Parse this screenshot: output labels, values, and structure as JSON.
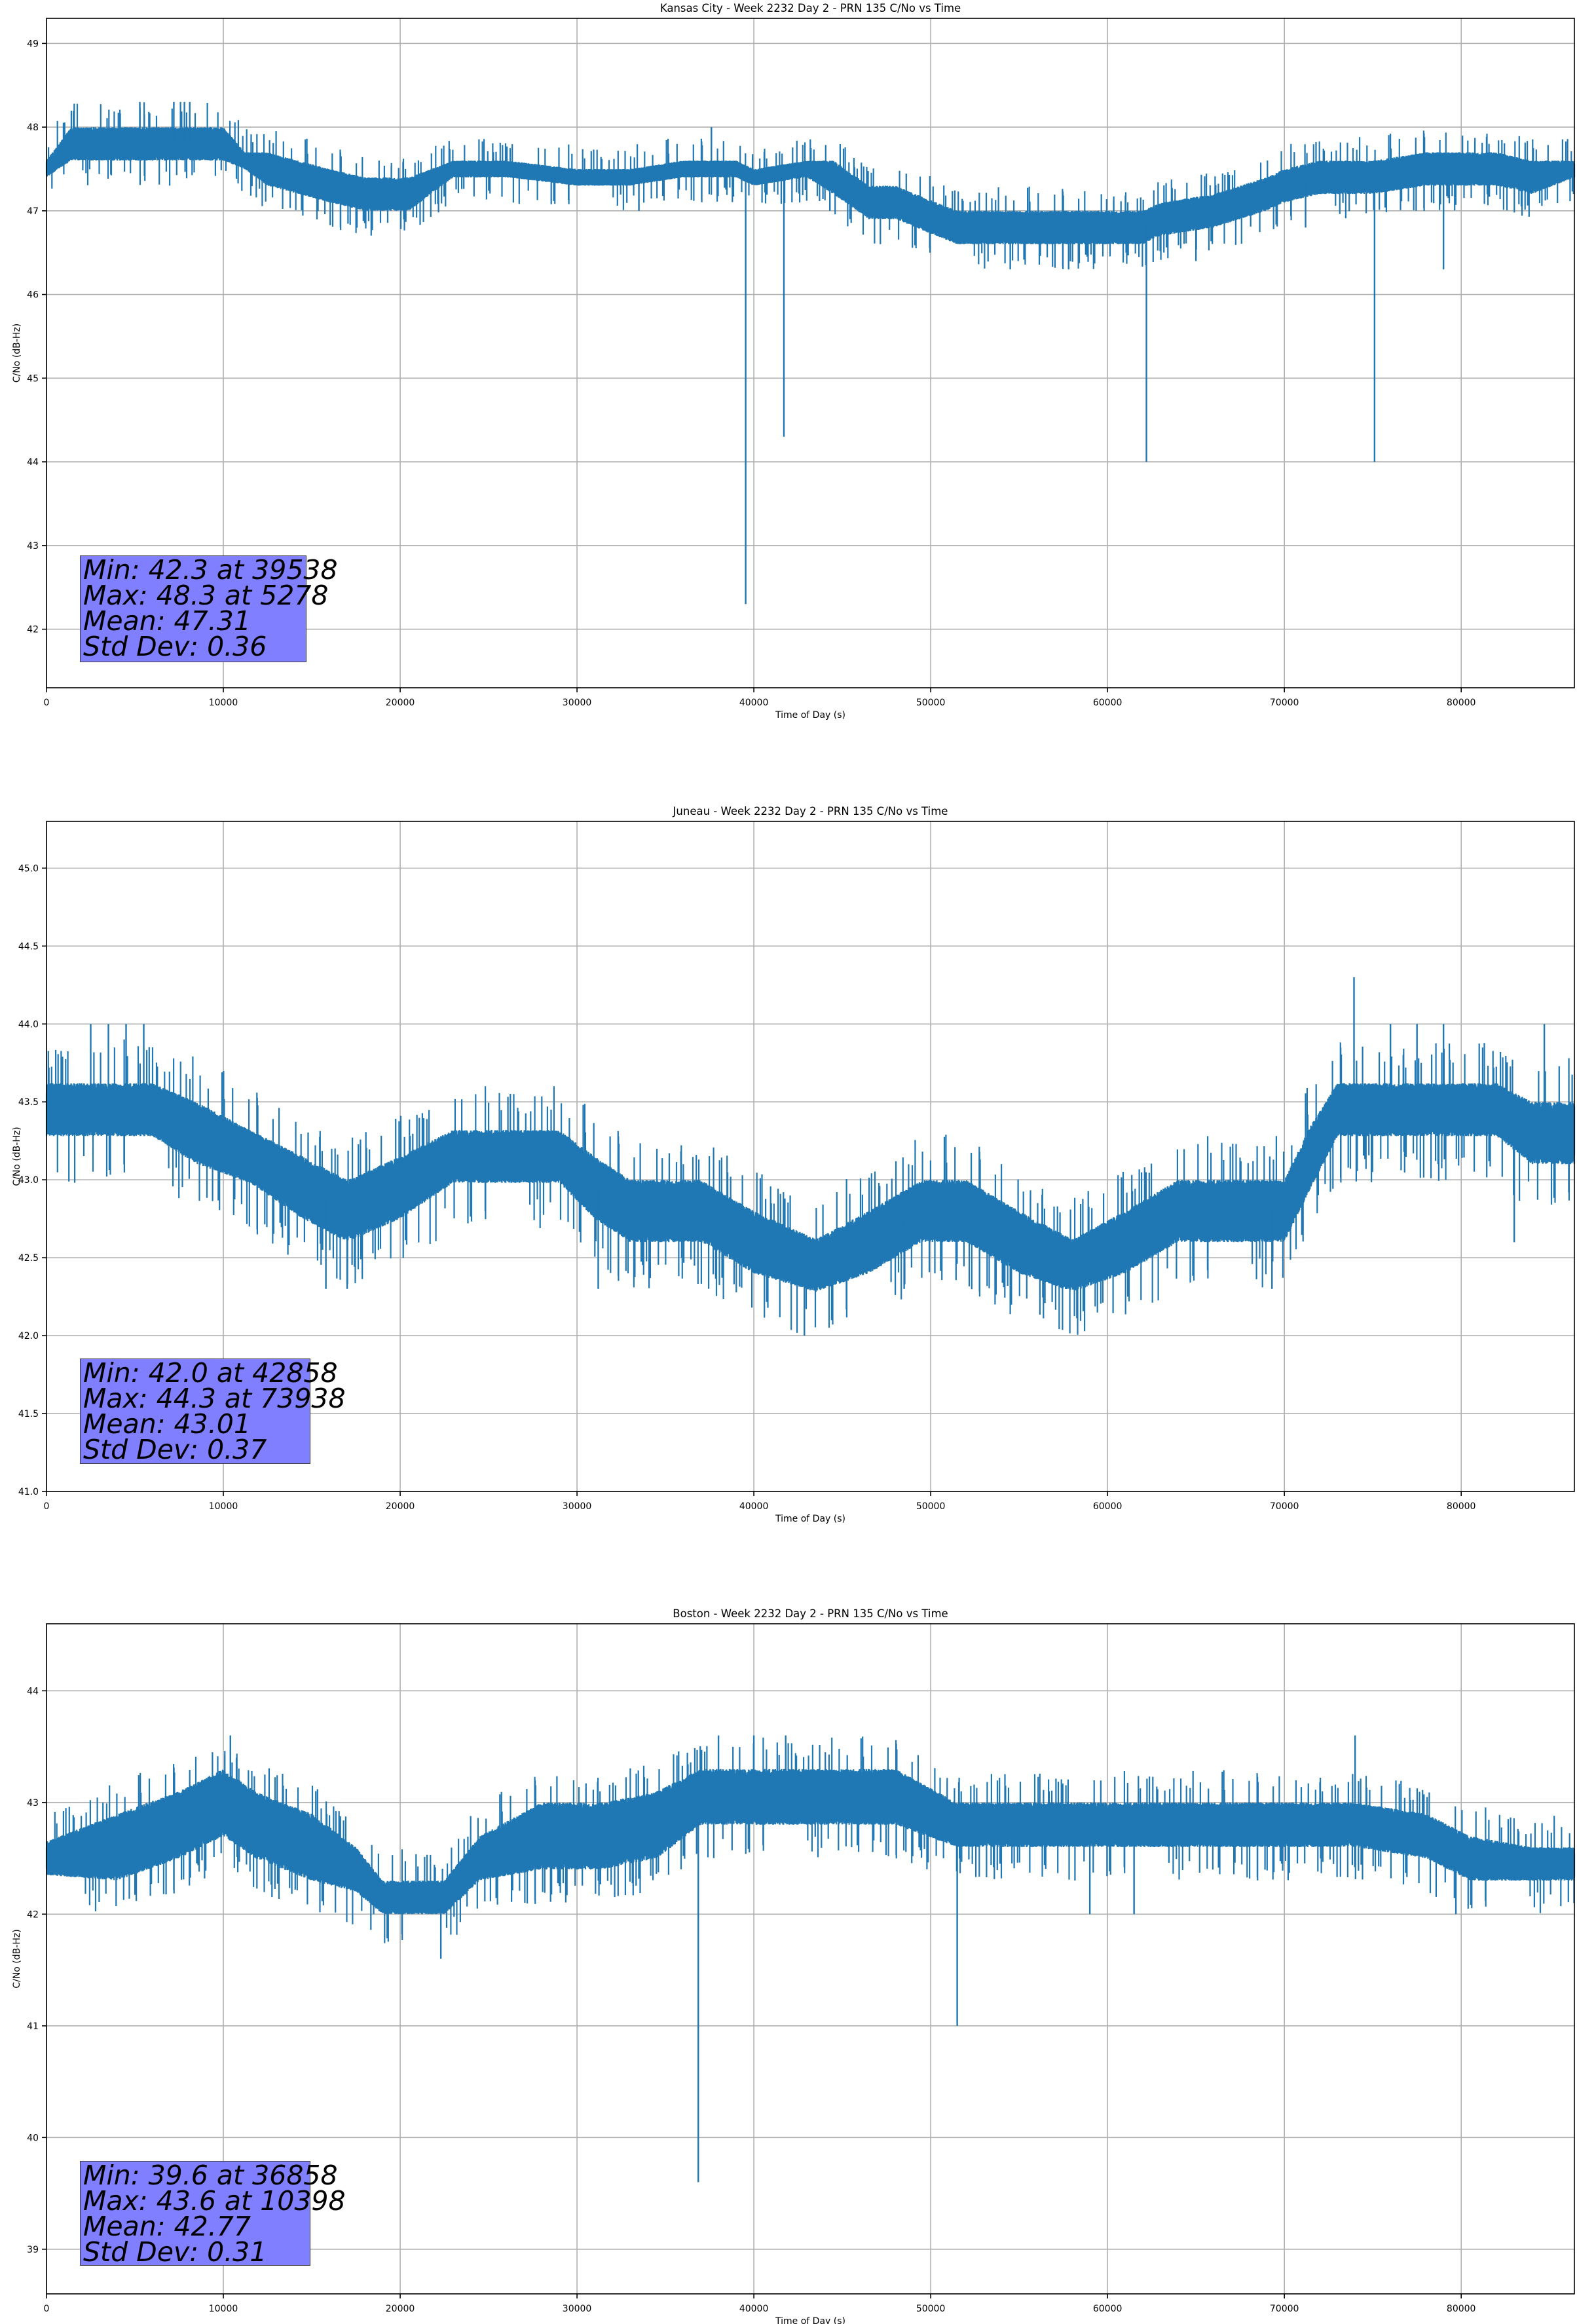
{
  "chart_data": [
    {
      "type": "line",
      "title": "Kansas City - Week 2232 Day 2 - PRN 135 C/No vs Time",
      "xlabel": "Time of Day (s)",
      "ylabel": "C/No (dB-Hz)",
      "xlim": [
        0,
        86400
      ],
      "ylim": [
        41.3,
        49.3
      ],
      "xticks": [
        0,
        10000,
        20000,
        30000,
        40000,
        50000,
        60000,
        70000,
        80000
      ],
      "yticks": [
        42,
        43,
        44,
        45,
        46,
        47,
        48,
        49
      ],
      "ytick_format": "int",
      "grid": true,
      "series_color": "#1f77b4",
      "series": [
        {
          "x": [
            0,
            1400,
            10000,
            11200,
            12500,
            16000,
            18000,
            20500,
            23000,
            26000,
            30000,
            33000,
            36000,
            39000,
            40000,
            43000,
            44500,
            46500,
            48000,
            51500,
            53000,
            60000,
            62000,
            63000,
            66000,
            69000,
            70000,
            72000,
            75000,
            78000,
            82000,
            84000,
            86400
          ],
          "y": [
            47.5,
            47.8,
            47.8,
            47.6,
            47.5,
            47.3,
            47.2,
            47.2,
            47.5,
            47.5,
            47.4,
            47.4,
            47.5,
            47.5,
            47.4,
            47.5,
            47.4,
            47.1,
            47.1,
            46.8,
            46.8,
            46.8,
            46.8,
            46.9,
            47.0,
            47.2,
            47.3,
            47.4,
            47.4,
            47.5,
            47.5,
            47.4,
            47.5
          ],
          "band": [
            0.1,
            0.2,
            0.2,
            0.1,
            0.2,
            0.2,
            0.2,
            0.2,
            0.1,
            0.1,
            0.1,
            0.1,
            0.1,
            0.1,
            0.1,
            0.1,
            0.2,
            0.2,
            0.2,
            0.2,
            0.2,
            0.2,
            0.2,
            0.2,
            0.2,
            0.2,
            0.2,
            0.2,
            0.2,
            0.2,
            0.2,
            0.2,
            0.1
          ],
          "spikes": [
            {
              "x": 39538,
              "y": 42.3
            },
            {
              "x": 41700,
              "y": 44.3
            },
            {
              "x": 62200,
              "y": 44.0
            },
            {
              "x": 75100,
              "y": 44.0
            },
            {
              "x": 5278,
              "y": 48.3
            },
            {
              "x": 7200,
              "y": 48.3
            },
            {
              "x": 7800,
              "y": 48.3
            },
            {
              "x": 8100,
              "y": 48.3
            },
            {
              "x": 37600,
              "y": 48.0
            },
            {
              "x": 79000,
              "y": 46.3
            },
            {
              "x": 33500,
              "y": 47.0
            },
            {
              "x": 44300,
              "y": 47.0
            },
            {
              "x": 54500,
              "y": 46.3
            },
            {
              "x": 57800,
              "y": 46.3
            },
            {
              "x": 65000,
              "y": 46.4
            },
            {
              "x": 71200,
              "y": 46.8
            }
          ]
        }
      ],
      "annotation": [
        "Min: 42.3 at 39538",
        "Max: 48.3 at 5278",
        "Mean: 47.31",
        "Std Dev: 0.36"
      ]
    },
    {
      "type": "line",
      "title": "Juneau - Week 2232 Day 2 - PRN 135 C/No vs Time",
      "xlabel": "Time of Day (s)",
      "ylabel": "C/No (dB-Hz)",
      "xlim": [
        0,
        86400
      ],
      "ylim": [
        41.0,
        45.3
      ],
      "xticks": [
        0,
        10000,
        20000,
        30000,
        40000,
        50000,
        60000,
        70000,
        80000
      ],
      "yticks": [
        41.0,
        41.5,
        42.0,
        42.5,
        43.0,
        43.5,
        44.0,
        44.5,
        45.0
      ],
      "ytick_format": "one",
      "grid": true,
      "series_color": "#1f77b4",
      "series": [
        {
          "x": [
            0,
            2500,
            6000,
            8500,
            11500,
            14500,
            17000,
            20000,
            23000,
            26000,
            29000,
            31000,
            33000,
            37000,
            40000,
            43500,
            46500,
            49500,
            52000,
            55000,
            58000,
            61000,
            64000,
            67000,
            70000,
            71500,
            73000,
            76000,
            79000,
            82000,
            84000,
            86400
          ],
          "y": [
            43.45,
            43.45,
            43.45,
            43.3,
            43.15,
            42.95,
            42.8,
            42.95,
            43.15,
            43.15,
            43.15,
            42.95,
            42.8,
            42.8,
            42.6,
            42.45,
            42.6,
            42.8,
            42.8,
            42.6,
            42.45,
            42.6,
            42.8,
            42.8,
            42.8,
            43.15,
            43.45,
            43.45,
            43.45,
            43.45,
            43.3,
            43.3
          ],
          "band": [
            0.17,
            0.17,
            0.17,
            0.2,
            0.17,
            0.2,
            0.2,
            0.2,
            0.17,
            0.17,
            0.17,
            0.2,
            0.2,
            0.2,
            0.2,
            0.17,
            0.2,
            0.2,
            0.2,
            0.2,
            0.17,
            0.2,
            0.2,
            0.2,
            0.2,
            0.2,
            0.17,
            0.17,
            0.17,
            0.17,
            0.2,
            0.2
          ],
          "spikes": [
            {
              "x": 42858,
              "y": 42.0
            },
            {
              "x": 73938,
              "y": 44.3
            },
            {
              "x": 2500,
              "y": 44.0
            },
            {
              "x": 3500,
              "y": 44.0
            },
            {
              "x": 4500,
              "y": 44.0
            },
            {
              "x": 5500,
              "y": 44.0
            },
            {
              "x": 76000,
              "y": 44.0
            },
            {
              "x": 77500,
              "y": 44.0
            },
            {
              "x": 79000,
              "y": 44.0
            },
            {
              "x": 84700,
              "y": 44.0
            },
            {
              "x": 15800,
              "y": 42.3
            },
            {
              "x": 17000,
              "y": 42.3
            },
            {
              "x": 31200,
              "y": 42.3
            },
            {
              "x": 48500,
              "y": 42.3
            },
            {
              "x": 69300,
              "y": 42.3
            },
            {
              "x": 83000,
              "y": 42.6
            }
          ]
        }
      ],
      "annotation": [
        "Min: 42.0 at 42858",
        "Max: 44.3 at 73938",
        "Mean: 43.01",
        "Std Dev: 0.37"
      ]
    },
    {
      "type": "line",
      "title": "Boston - Week 2232 Day 2 - PRN 135 C/No vs Time",
      "xlabel": "Time of Day (s)",
      "ylabel": "C/No (dB-Hz)",
      "xlim": [
        0,
        86400
      ],
      "ylim": [
        38.6,
        44.6
      ],
      "xticks": [
        0,
        10000,
        20000,
        30000,
        40000,
        50000,
        60000,
        70000,
        80000
      ],
      "yticks": [
        39,
        40,
        41,
        42,
        43,
        44
      ],
      "ytick_format": "int",
      "grid": true,
      "series_color": "#1f77b4",
      "series": [
        {
          "x": [
            0,
            4000,
            7500,
            10000,
            11800,
            15000,
            17500,
            19000,
            21000,
            22500,
            24500,
            28000,
            31500,
            34500,
            37000,
            40500,
            44000,
            48000,
            51500,
            55000,
            60000,
            65000,
            70000,
            74000,
            78000,
            80500,
            84000,
            86400
          ],
          "y": [
            42.5,
            42.6,
            42.8,
            43.0,
            42.8,
            42.6,
            42.4,
            42.15,
            42.15,
            42.15,
            42.5,
            42.7,
            42.7,
            42.8,
            43.05,
            43.05,
            43.05,
            43.05,
            42.8,
            42.8,
            42.8,
            42.8,
            42.8,
            42.8,
            42.7,
            42.5,
            42.45,
            42.45
          ],
          "band": [
            0.15,
            0.3,
            0.3,
            0.3,
            0.3,
            0.3,
            0.2,
            0.15,
            0.15,
            0.15,
            0.2,
            0.3,
            0.3,
            0.3,
            0.25,
            0.25,
            0.25,
            0.25,
            0.2,
            0.2,
            0.2,
            0.2,
            0.2,
            0.2,
            0.2,
            0.2,
            0.15,
            0.15
          ],
          "spikes": [
            {
              "x": 36858,
              "y": 39.6
            },
            {
              "x": 51500,
              "y": 41.0
            },
            {
              "x": 22300,
              "y": 41.6
            },
            {
              "x": 10398,
              "y": 43.6
            },
            {
              "x": 38000,
              "y": 43.6
            },
            {
              "x": 40000,
              "y": 43.6
            },
            {
              "x": 41800,
              "y": 43.6
            },
            {
              "x": 74000,
              "y": 43.6
            },
            {
              "x": 79700,
              "y": 42.0
            },
            {
              "x": 59000,
              "y": 42.0
            },
            {
              "x": 61500,
              "y": 42.0
            },
            {
              "x": 18500,
              "y": 42.0
            }
          ]
        }
      ],
      "annotation": [
        "Min: 39.6 at 36858",
        "Max: 43.6 at 10398",
        "Mean: 42.77",
        "Std Dev: 0.31"
      ]
    }
  ]
}
